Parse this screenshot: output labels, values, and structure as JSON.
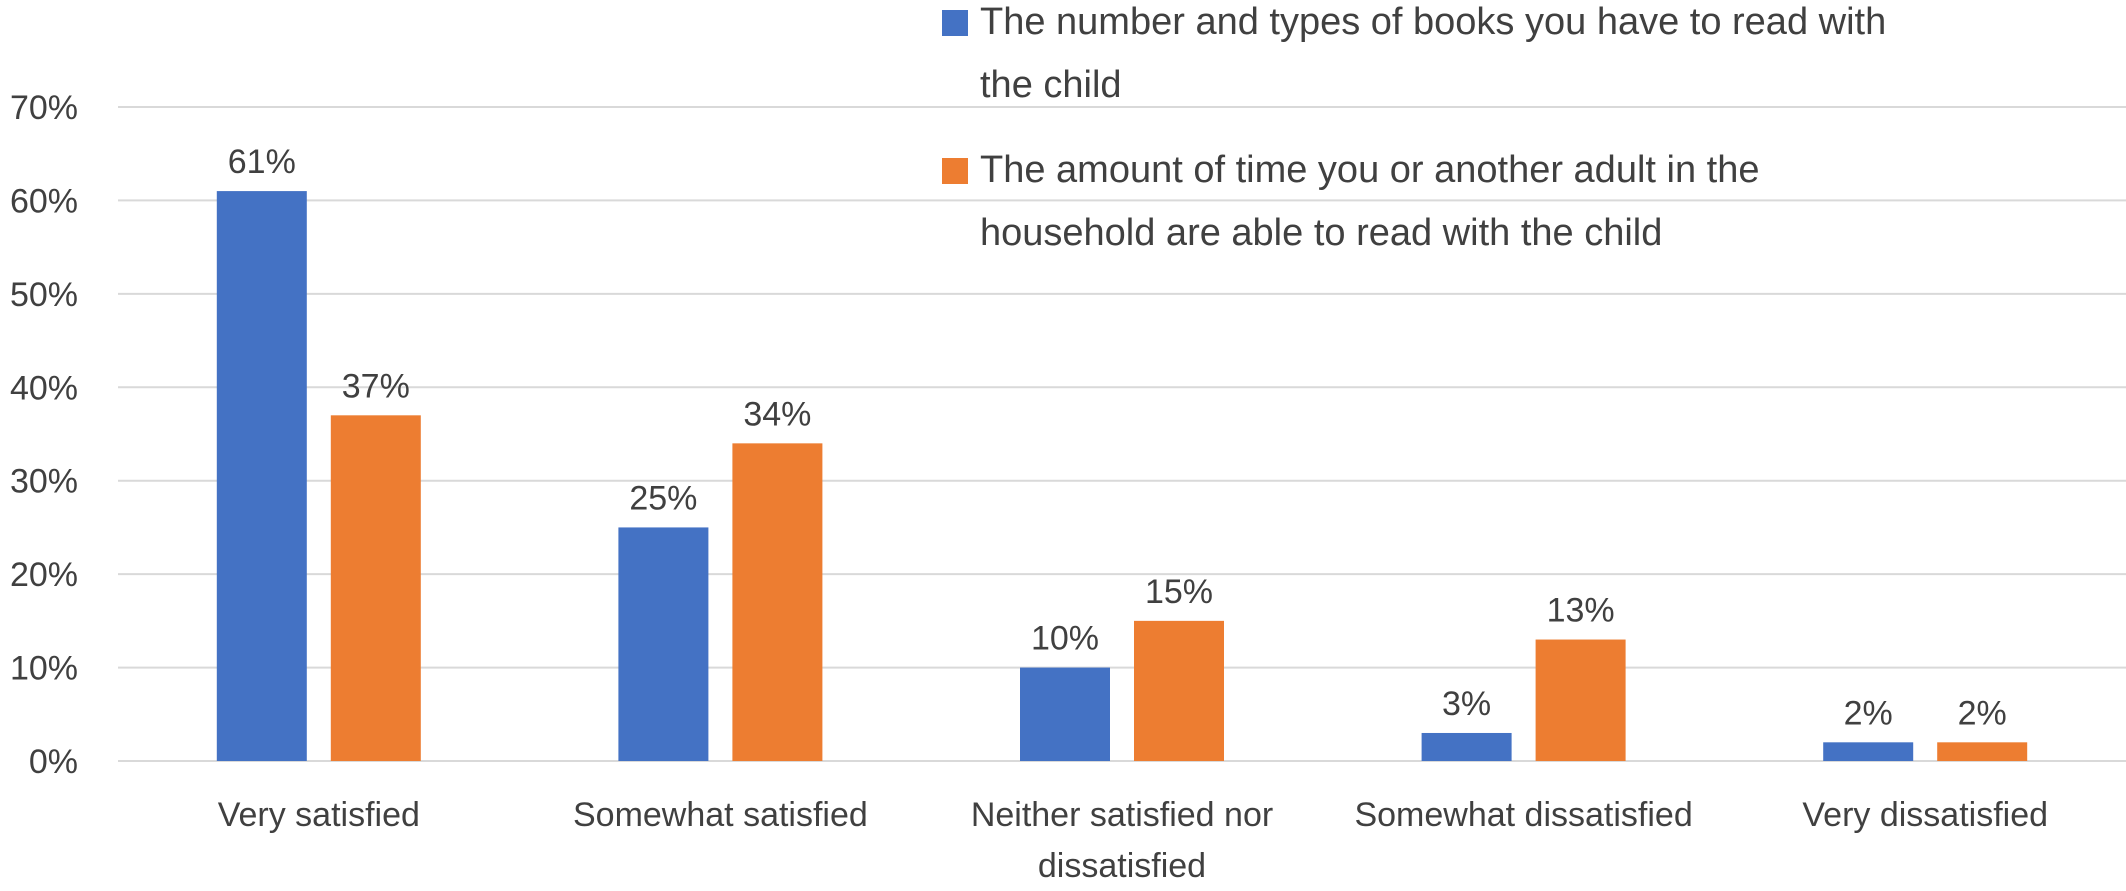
{
  "chart_data": {
    "type": "bar",
    "categories": [
      [
        "Very satisfied"
      ],
      [
        "Somewhat satisfied"
      ],
      [
        "Neither satisfied nor",
        "dissatisfied"
      ],
      [
        "Somewhat dissatisfied"
      ],
      [
        "Very dissatisfied"
      ]
    ],
    "series": [
      {
        "name_lines": [
          "The number and types of books you have to read with",
          "the child"
        ],
        "color": "#4472C4",
        "values": [
          61,
          25,
          10,
          3,
          2
        ],
        "labels": [
          "61%",
          "25%",
          "10%",
          "3%",
          "2%"
        ]
      },
      {
        "name_lines": [
          "The amount of time you or another adult in the",
          "household are able to read with the child"
        ],
        "color": "#ED7D31",
        "values": [
          37,
          34,
          15,
          13,
          2
        ],
        "labels": [
          "37%",
          "34%",
          "15%",
          "13%",
          "2%"
        ]
      }
    ],
    "ylim": [
      0,
      70
    ],
    "yticks": [
      0,
      10,
      20,
      30,
      40,
      50,
      60,
      70
    ],
    "ytick_labels": [
      "0%",
      "10%",
      "20%",
      "30%",
      "40%",
      "50%",
      "60%",
      "70%"
    ],
    "grid": true,
    "legend_position": "top-right",
    "xlabel": "",
    "ylabel": "",
    "title": ""
  }
}
